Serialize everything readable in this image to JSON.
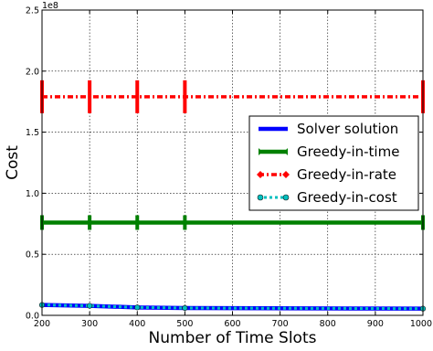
{
  "chart_data": {
    "type": "line",
    "xlabel": "Number of Time Slots",
    "ylabel": "Cost",
    "y_multiplier_label": "1e8",
    "xlim": [
      200,
      1000
    ],
    "ylim": [
      0,
      2.5
    ],
    "x_ticks": [
      "200",
      "300",
      "400",
      "500",
      "600",
      "700",
      "800",
      "900",
      "1000"
    ],
    "y_ticks": [
      "0.0",
      "0.5",
      "1.0",
      "1.5",
      "2.0",
      "2.5"
    ],
    "grid": true,
    "legend_position": "center-right",
    "x": [
      200,
      300,
      400,
      500,
      1000
    ],
    "series": [
      {
        "name": "Solver solution",
        "color": "#0000ff",
        "values": [
          0.085,
          0.078,
          0.065,
          0.06,
          0.055
        ]
      },
      {
        "name": "Greedy-in-time",
        "color": "#008000",
        "values": [
          0.76,
          0.76,
          0.76,
          0.76,
          0.76
        ]
      },
      {
        "name": "Greedy-in-rate",
        "color": "#ff0000",
        "values": [
          1.79,
          1.79,
          1.79,
          1.79,
          1.79
        ]
      },
      {
        "name": "Greedy-in-cost",
        "color": "#00bfbf",
        "values": [
          0.085,
          0.078,
          0.065,
          0.06,
          0.055
        ]
      }
    ]
  }
}
